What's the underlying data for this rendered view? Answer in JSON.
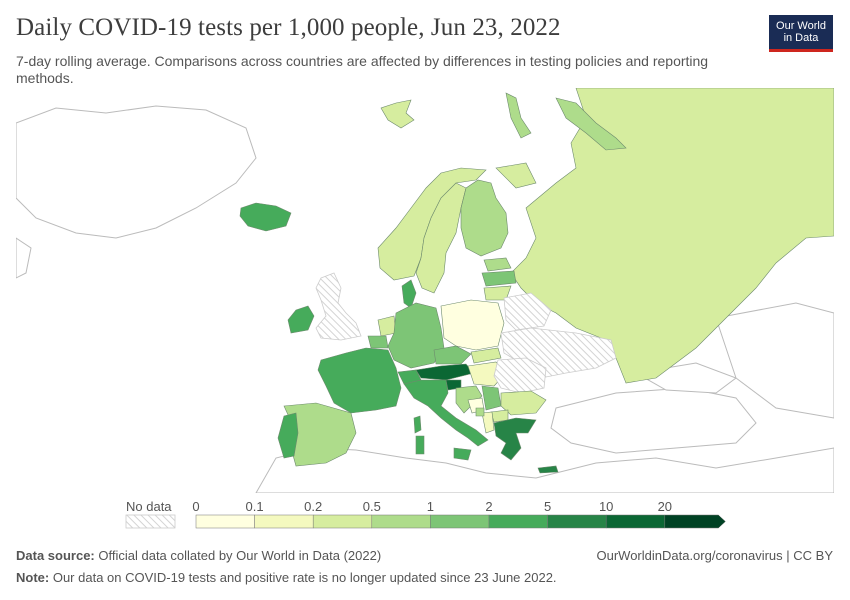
{
  "header": {
    "title": "Daily COVID-19 tests per 1,000 people, Jun 23, 2022",
    "subtitle": "7-day rolling average. Comparisons across countries are affected by differences in testing policies and reporting methods."
  },
  "logo": {
    "line1": "Our World",
    "line2": "in Data"
  },
  "legend": {
    "no_data_label": "No data",
    "ticks": [
      "0",
      "0.1",
      "0.2",
      "0.5",
      "1",
      "2",
      "5",
      "10",
      "20"
    ],
    "bins": [
      {
        "from": 0,
        "to": 0.1,
        "color": "#ffffe0"
      },
      {
        "from": 0.1,
        "to": 0.2,
        "color": "#f4f9bf"
      },
      {
        "from": 0.2,
        "to": 0.5,
        "color": "#d6ed9f"
      },
      {
        "from": 0.5,
        "to": 1,
        "color": "#aedc8b"
      },
      {
        "from": 1,
        "to": 2,
        "color": "#7dc576"
      },
      {
        "from": 2,
        "to": 5,
        "color": "#46ab5b"
      },
      {
        "from": 5,
        "to": 10,
        "color": "#278447"
      },
      {
        "from": 10,
        "to": 20,
        "color": "#0b6734"
      },
      {
        "from": 20,
        "to": null,
        "color": "#004224"
      }
    ]
  },
  "colors": {
    "no_data_stroke": "#cccccc",
    "country_stroke": "#6d8a6d",
    "neighbour_fill": "#ffffff",
    "neighbour_stroke": "#bbbbbb"
  },
  "footer": {
    "source_label": "Data source:",
    "source_text": "Official data collated by Our World in Data (2022)",
    "note_label": "Note:",
    "note_text": "Our data on COVID-19 tests and positive rate is no longer updated since 23 June 2022.",
    "link": "OurWorldinData.org/coronavirus | CC BY"
  }
}
